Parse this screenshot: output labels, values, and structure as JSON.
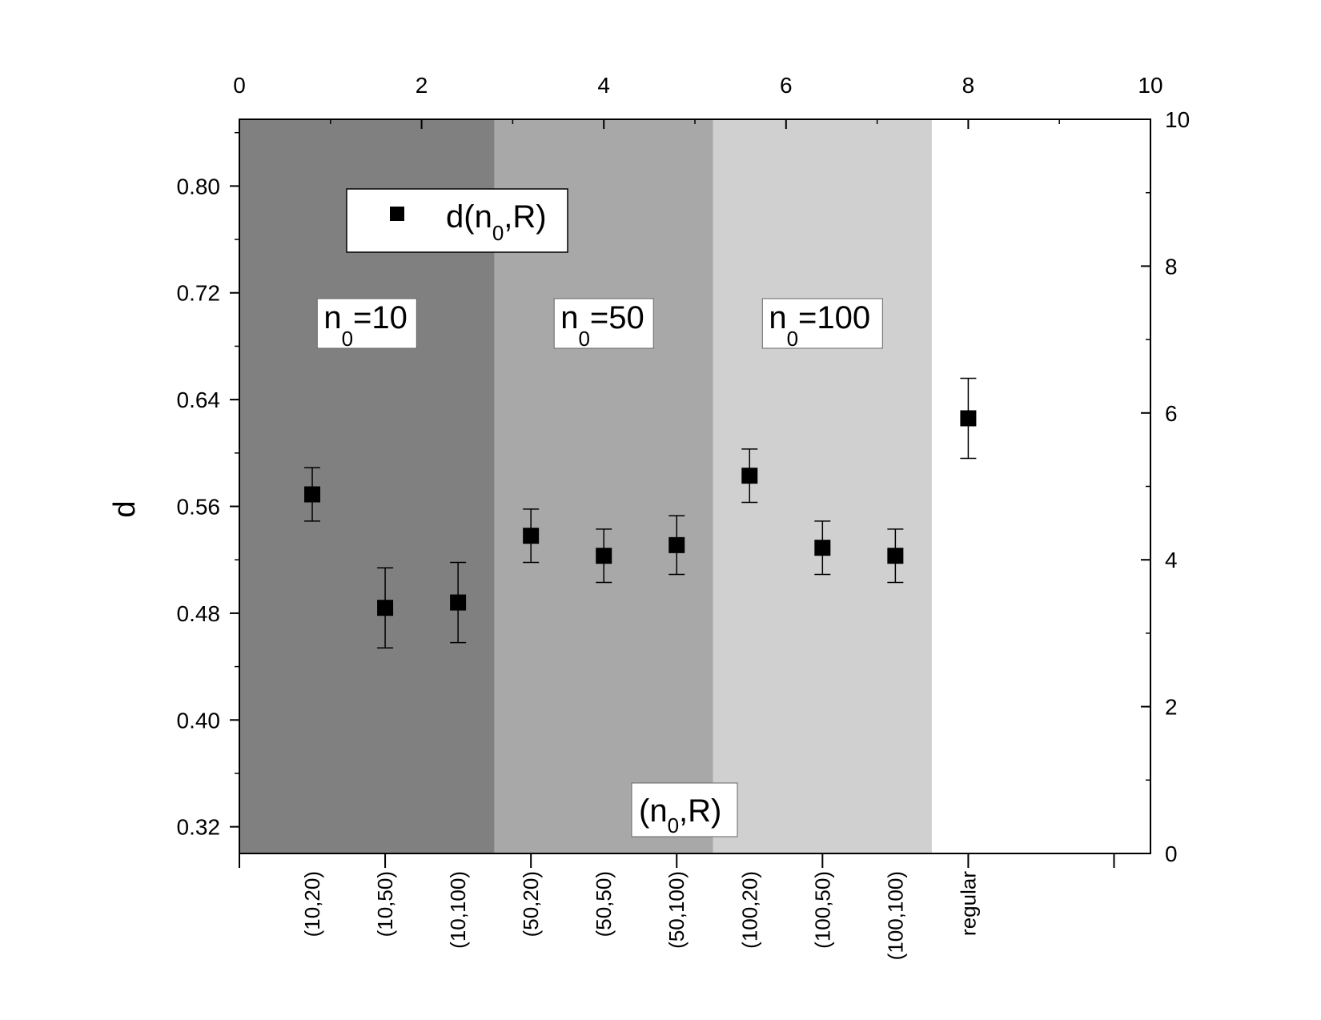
{
  "chart_data": {
    "type": "scatter",
    "ylabel": "d",
    "xlabel": "(n0,R)",
    "ylim": [
      0.3,
      0.85
    ],
    "yticks": [
      "0.32",
      "0.40",
      "0.48",
      "0.56",
      "0.64",
      "0.72",
      "0.80"
    ],
    "top_axis": {
      "min": 0,
      "max": 10,
      "ticks": [
        "0",
        "2",
        "4",
        "6",
        "8",
        "10"
      ]
    },
    "right_axis": {
      "min": 0,
      "max": 10,
      "ticks": [
        "0",
        "2",
        "4",
        "6",
        "8",
        "10"
      ]
    },
    "categories": [
      "(10,20)",
      "(10,50)",
      "(10,100)",
      "(50,20)",
      "(50,50)",
      "(50,100)",
      "(100,20)",
      "(100,50)",
      "(100,100)",
      "regular"
    ],
    "series": [
      {
        "name": "d(n0,R)",
        "values": [
          0.569,
          0.484,
          0.488,
          0.538,
          0.523,
          0.531,
          0.583,
          0.529,
          0.523,
          0.626
        ],
        "errors": [
          0.02,
          0.03,
          0.03,
          0.02,
          0.02,
          0.022,
          0.02,
          0.02,
          0.02,
          0.03
        ]
      }
    ],
    "grid": false,
    "legend_position": "top-left",
    "regions": [
      {
        "label_main": "n",
        "label_sub": "0",
        "label_rest": "=10",
        "color": "#808080"
      },
      {
        "label_main": "n",
        "label_sub": "0",
        "label_rest": "=50",
        "color": "#a8a8a8"
      },
      {
        "label_main": "n",
        "label_sub": "0",
        "label_rest": "=100",
        "color": "#d0d0d0"
      }
    ],
    "xaxis_box": {
      "main": "(n",
      "sub": "0",
      "rest": ",R)"
    },
    "legend_label": {
      "main": "d(n",
      "sub": "0",
      "rest": ",R)"
    }
  }
}
